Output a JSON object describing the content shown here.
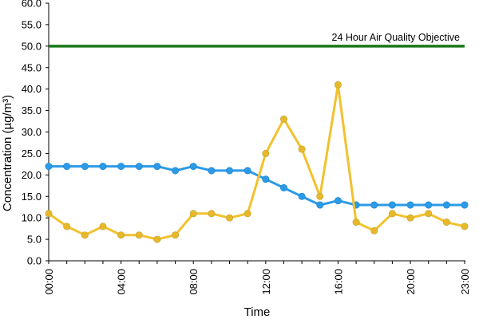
{
  "chart_data": {
    "type": "line",
    "title": "",
    "xlabel": "Time",
    "ylabel": "Concentration (µg/m³)",
    "ylim": [
      0,
      60
    ],
    "yticks": [
      "0.0",
      "5.0",
      "10.0",
      "15.0",
      "20.0",
      "25.0",
      "30.0",
      "35.0",
      "40.0",
      "45.0",
      "50.0",
      "55.0",
      "60.0"
    ],
    "x": [
      "00:00",
      "01:00",
      "02:00",
      "03:00",
      "04:00",
      "05:00",
      "06:00",
      "07:00",
      "08:00",
      "09:00",
      "10:00",
      "11:00",
      "12:00",
      "13:00",
      "14:00",
      "15:00",
      "16:00",
      "17:00",
      "18:00",
      "19:00",
      "20:00",
      "21:00",
      "22:00",
      "23:00"
    ],
    "xtick_labels": [
      "00:00",
      "04:00",
      "08:00",
      "12:00",
      "16:00",
      "20:00",
      "23:00"
    ],
    "grid": false,
    "series": [
      {
        "color": "#2b9be8",
        "marker_fill": "#2b9be8",
        "values": [
          22,
          22,
          22,
          22,
          22,
          22,
          22,
          21,
          22,
          21,
          21,
          21,
          19,
          17,
          15,
          13,
          14,
          13,
          13,
          13,
          13,
          13,
          13,
          13
        ]
      },
      {
        "color": "#f2c12e",
        "marker_fill": "#e8b828",
        "values": [
          11,
          8,
          6,
          8,
          6,
          6,
          5,
          6,
          11,
          11,
          10,
          11,
          25,
          33,
          26,
          15,
          41,
          9,
          7,
          11,
          10,
          11,
          9,
          8
        ]
      }
    ],
    "threshold": {
      "value": 50,
      "label": "24 Hour Air Quality Objective",
      "color": "#1a7a1a"
    }
  }
}
